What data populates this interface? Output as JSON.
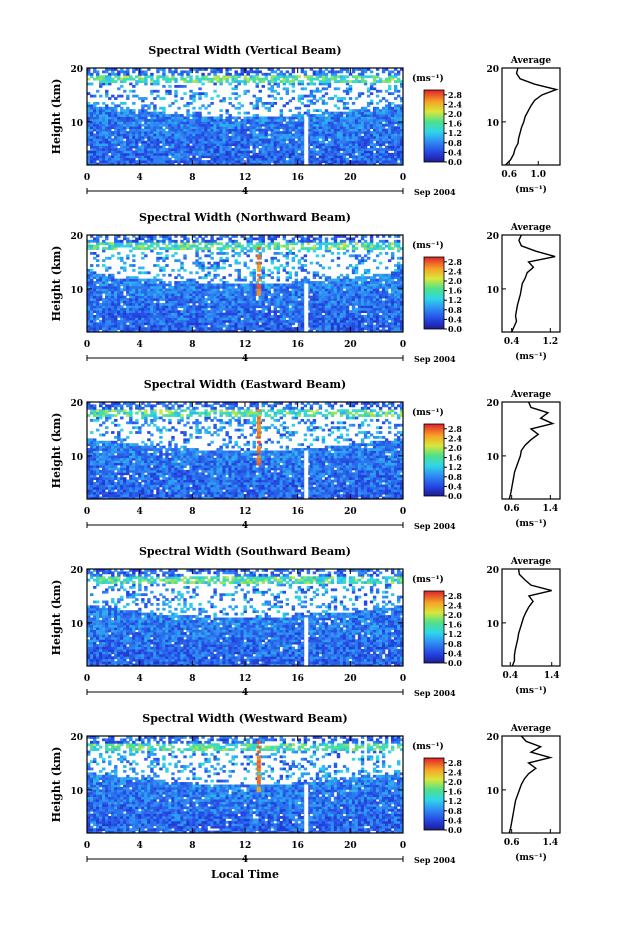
{
  "figure": {
    "xlabel": "Local Time",
    "date_label": "Sep 2004",
    "day_label": "4"
  },
  "chart_data": [
    {
      "type": "heatmap",
      "title": "Spectral Width (Vertical Beam)",
      "xlabel": "Local Time",
      "ylabel": "Height (km)",
      "xticks": [
        "0",
        "4",
        "8",
        "12",
        "16",
        "20",
        "0"
      ],
      "yticks": [
        "10",
        "20"
      ],
      "xlim": [
        0,
        24
      ],
      "ylim": [
        2,
        20
      ],
      "colorbar": {
        "label": "(ms⁻¹)",
        "ticks": [
          "0.0",
          "0.4",
          "0.8",
          "1.2",
          "1.6",
          "2.0",
          "2.4",
          "2.8"
        ],
        "range": [
          0,
          3.0
        ]
      },
      "profile": {
        "title": "Average",
        "xlabel": "(ms⁻¹)",
        "xticks": [
          "0.6",
          "1.0"
        ],
        "xlim": [
          0.5,
          1.3
        ],
        "ylim": [
          2,
          20
        ],
        "heights": [
          2,
          3,
          4,
          5,
          6,
          7,
          8,
          9,
          10,
          11,
          12,
          13,
          14,
          15,
          16,
          17,
          18,
          19,
          20
        ],
        "values": [
          0.55,
          0.62,
          0.66,
          0.68,
          0.72,
          0.73,
          0.75,
          0.77,
          0.8,
          0.82,
          0.86,
          0.9,
          0.95,
          1.05,
          1.25,
          0.95,
          0.75,
          0.7,
          0.72
        ]
      }
    },
    {
      "type": "heatmap",
      "title": "Spectral Width (Northward Beam)",
      "xlabel": "Local Time",
      "ylabel": "Height (km)",
      "xticks": [
        "0",
        "4",
        "8",
        "12",
        "16",
        "20",
        "0"
      ],
      "yticks": [
        "10",
        "20"
      ],
      "xlim": [
        0,
        24
      ],
      "ylim": [
        2,
        20
      ],
      "colorbar": {
        "label": "(ms⁻¹)",
        "ticks": [
          "0.0",
          "0.4",
          "0.8",
          "1.2",
          "1.6",
          "2.0",
          "2.4",
          "2.8"
        ],
        "range": [
          0,
          3.0
        ]
      },
      "profile": {
        "title": "Average",
        "xlabel": "(ms⁻¹)",
        "xticks": [
          "0.4",
          "1.2"
        ],
        "xlim": [
          0.2,
          1.4
        ],
        "ylim": [
          2,
          20
        ],
        "heights": [
          2,
          3,
          4,
          5,
          6,
          7,
          8,
          9,
          10,
          11,
          12,
          13,
          14,
          15,
          16,
          17,
          18,
          19,
          20
        ],
        "values": [
          0.4,
          0.45,
          0.5,
          0.48,
          0.5,
          0.52,
          0.55,
          0.58,
          0.6,
          0.62,
          0.68,
          0.72,
          0.85,
          0.75,
          1.3,
          0.9,
          0.6,
          0.55,
          0.6
        ]
      }
    },
    {
      "type": "heatmap",
      "title": "Spectral Width (Eastward Beam)",
      "xlabel": "Local Time",
      "ylabel": "Height (km)",
      "xticks": [
        "0",
        "4",
        "8",
        "12",
        "16",
        "20",
        "0"
      ],
      "yticks": [
        "10",
        "20"
      ],
      "xlim": [
        0,
        24
      ],
      "ylim": [
        2,
        20
      ],
      "colorbar": {
        "label": "(ms⁻¹)",
        "ticks": [
          "0.0",
          "0.4",
          "0.8",
          "1.2",
          "1.6",
          "2.0",
          "2.4",
          "2.8"
        ],
        "range": [
          0,
          3.0
        ]
      },
      "profile": {
        "title": "Average",
        "xlabel": "(ms⁻¹)",
        "xticks": [
          "0.6",
          "1.4"
        ],
        "xlim": [
          0.4,
          1.6
        ],
        "ylim": [
          2,
          20
        ],
        "heights": [
          2,
          3,
          4,
          5,
          6,
          7,
          8,
          9,
          10,
          11,
          12,
          13,
          14,
          15,
          16,
          17,
          18,
          19,
          20
        ],
        "values": [
          0.55,
          0.58,
          0.6,
          0.62,
          0.64,
          0.66,
          0.7,
          0.74,
          0.78,
          0.8,
          0.88,
          1.0,
          1.15,
          1.0,
          1.45,
          1.2,
          1.35,
          1.0,
          0.95
        ]
      }
    },
    {
      "type": "heatmap",
      "title": "Spectral Width (Southward Beam)",
      "xlabel": "Local Time",
      "ylabel": "Height (km)",
      "xticks": [
        "0",
        "4",
        "8",
        "12",
        "16",
        "20",
        "0"
      ],
      "yticks": [
        "10",
        "20"
      ],
      "xlim": [
        0,
        24
      ],
      "ylim": [
        2,
        20
      ],
      "colorbar": {
        "label": "(ms⁻¹)",
        "ticks": [
          "0.0",
          "0.4",
          "0.8",
          "1.2",
          "1.6",
          "2.0",
          "2.4",
          "2.8"
        ],
        "range": [
          0,
          3.0
        ]
      },
      "profile": {
        "title": "Average",
        "xlabel": "(ms⁻¹)",
        "xticks": [
          "0.4",
          "1.4"
        ],
        "xlim": [
          0.2,
          1.6
        ],
        "ylim": [
          2,
          20
        ],
        "heights": [
          2,
          3,
          4,
          5,
          6,
          7,
          8,
          9,
          10,
          11,
          12,
          13,
          14,
          15,
          16,
          17,
          18,
          19,
          20
        ],
        "values": [
          0.45,
          0.5,
          0.5,
          0.52,
          0.55,
          0.58,
          0.6,
          0.64,
          0.68,
          0.72,
          0.78,
          0.85,
          0.95,
          0.85,
          1.4,
          0.9,
          0.75,
          0.62,
          0.6
        ]
      }
    },
    {
      "type": "heatmap",
      "title": "Spectral Width (Westward Beam)",
      "xlabel": "Local Time",
      "ylabel": "Height (km)",
      "xticks": [
        "0",
        "4",
        "8",
        "12",
        "16",
        "20",
        "0"
      ],
      "yticks": [
        "10",
        "20"
      ],
      "xlim": [
        0,
        24
      ],
      "ylim": [
        2,
        20
      ],
      "colorbar": {
        "label": "(ms⁻¹)",
        "ticks": [
          "0.0",
          "0.4",
          "0.8",
          "1.2",
          "1.6",
          "2.0",
          "2.4",
          "2.8"
        ],
        "range": [
          0,
          3.0
        ]
      },
      "profile": {
        "title": "Average",
        "xlabel": "(ms⁻¹)",
        "xticks": [
          "0.6",
          "1.4"
        ],
        "xlim": [
          0.4,
          1.6
        ],
        "ylim": [
          2,
          20
        ],
        "heights": [
          2,
          3,
          4,
          5,
          6,
          7,
          8,
          9,
          10,
          11,
          12,
          13,
          14,
          15,
          16,
          17,
          18,
          19,
          20
        ],
        "values": [
          0.55,
          0.58,
          0.6,
          0.62,
          0.64,
          0.66,
          0.68,
          0.72,
          0.76,
          0.8,
          0.86,
          0.95,
          1.1,
          0.95,
          1.4,
          1.0,
          1.2,
          0.9,
          0.8
        ]
      }
    }
  ]
}
